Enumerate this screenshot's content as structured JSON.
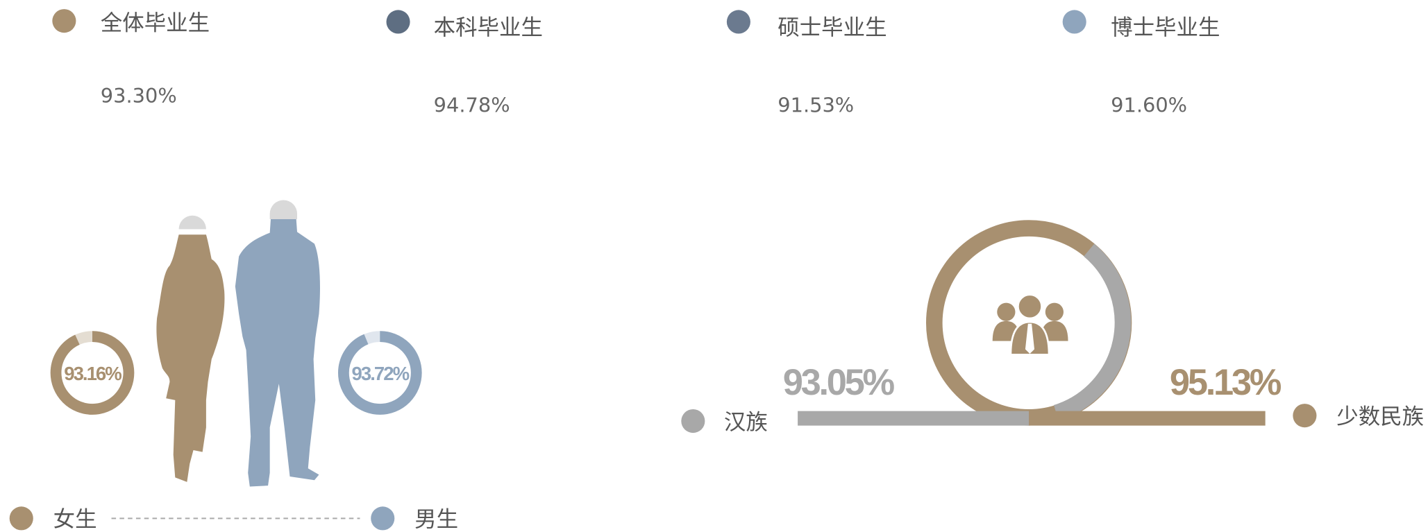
{
  "stats": [
    {
      "label": "全体毕业生",
      "value": "93.30%"
    },
    {
      "label": "本科毕业生",
      "value": "94.78%"
    },
    {
      "label": "硕士毕业生",
      "value": "91.53%"
    },
    {
      "label": "博士毕业生",
      "value": "91.60%"
    }
  ],
  "gender": {
    "female": {
      "label": "女生",
      "rate": {
        "value": 93.16,
        "label": "93.16%"
      }
    },
    "male": {
      "label": "男生",
      "rate": {
        "value": 93.72,
        "label": "93.72%"
      }
    }
  },
  "ethnicity": {
    "han": {
      "label": "汉族",
      "rate": {
        "value": 93.05,
        "label": "93.05%"
      }
    },
    "minority": {
      "label": "少数民族",
      "rate": {
        "value": 95.13,
        "label": "95.13%"
      }
    }
  }
}
